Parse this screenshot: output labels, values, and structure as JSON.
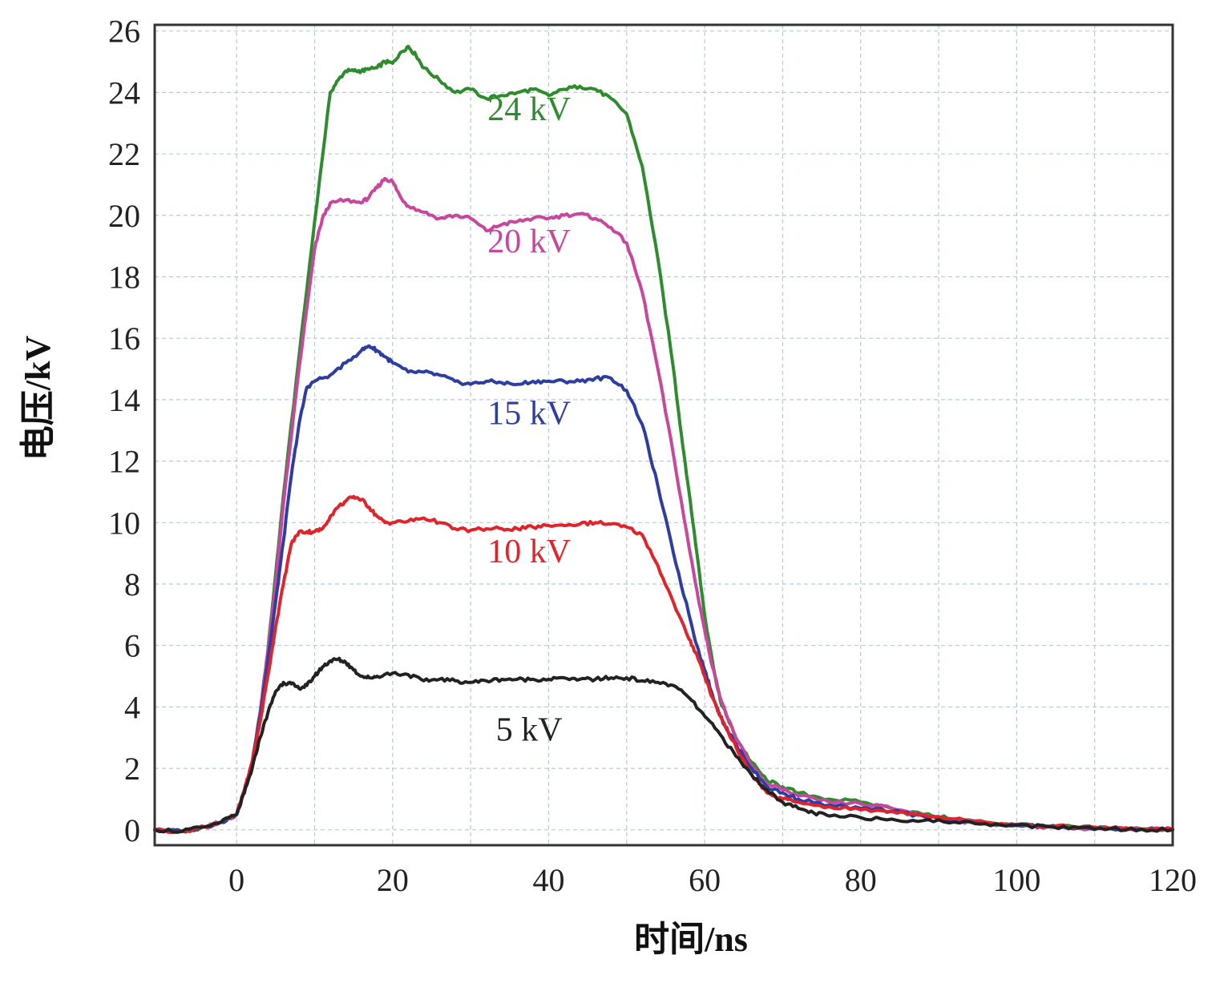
{
  "chart_data": {
    "type": "line",
    "title": "",
    "xlabel": "时间/ns",
    "ylabel": "电压/kV",
    "xlim": [
      -10.5,
      120
    ],
    "ylim": [
      -0.5,
      26.2
    ],
    "x_ticks": [
      0,
      20,
      40,
      60,
      80,
      100,
      120
    ],
    "x_tick_labels": [
      "0",
      "20",
      "40",
      "60",
      "80",
      "100",
      "120"
    ],
    "y_ticks": [
      0,
      2,
      4,
      6,
      8,
      10,
      12,
      14,
      16,
      18,
      20,
      22,
      24,
      26
    ],
    "y_tick_labels": [
      "0",
      "2",
      "4",
      "6",
      "8",
      "10",
      "12",
      "14",
      "16",
      "18",
      "20",
      "22",
      "24",
      "26"
    ],
    "grid": true,
    "series": [
      {
        "name": "24 kV",
        "color": "#2e8b2e",
        "label": {
          "text": "24 kV",
          "x": 37.5,
          "y": 23.1
        },
        "x": [
          -10.5,
          -7,
          -4,
          -2,
          0,
          1,
          2,
          3,
          4,
          5,
          6,
          8,
          10,
          12,
          13,
          14,
          15,
          16,
          17,
          18,
          19,
          20,
          21,
          22,
          23,
          24,
          26,
          28,
          30,
          32,
          34,
          36,
          38,
          40,
          42,
          44,
          46,
          48,
          50,
          52,
          54,
          56,
          57,
          58,
          59,
          60,
          61,
          62,
          63,
          64,
          66,
          68,
          70,
          72,
          76,
          80,
          84,
          88,
          92,
          96,
          100,
          104,
          108,
          112,
          116,
          120
        ],
        "y": [
          0.0,
          -0.05,
          0.1,
          0.25,
          0.5,
          1.3,
          2.2,
          3.8,
          5.8,
          8.3,
          10.9,
          15.4,
          19.8,
          24.0,
          24.4,
          24.7,
          24.7,
          24.7,
          24.75,
          24.8,
          25.0,
          24.95,
          25.3,
          25.5,
          25.2,
          24.8,
          24.4,
          24.0,
          24.1,
          23.8,
          23.9,
          24.0,
          24.1,
          23.9,
          24.1,
          24.2,
          24.1,
          23.8,
          23.3,
          21.6,
          18.6,
          15.0,
          12.9,
          11.0,
          9.0,
          7.0,
          5.5,
          4.2,
          3.6,
          3.0,
          2.2,
          1.6,
          1.4,
          1.2,
          1.0,
          0.9,
          0.7,
          0.5,
          0.35,
          0.25,
          0.18,
          0.12,
          0.08,
          0.05,
          0.03,
          0.02
        ]
      },
      {
        "name": "20 kV",
        "color": "#c8469b",
        "label": {
          "text": "20 kV",
          "x": 37.5,
          "y": 18.8
        },
        "x": [
          -10.5,
          -7,
          -4,
          -2,
          0,
          1,
          2,
          3,
          4,
          5,
          6,
          8,
          10,
          11,
          12,
          14,
          16,
          17,
          18,
          19,
          20,
          21,
          22,
          24,
          26,
          28,
          30,
          32,
          34,
          36,
          38,
          40,
          42,
          44,
          46,
          48,
          50,
          52,
          54,
          56,
          58,
          59,
          60,
          61,
          62,
          63,
          64,
          66,
          68,
          70,
          72,
          76,
          80,
          84,
          88,
          92,
          96,
          100,
          104,
          108,
          112,
          116,
          120
        ],
        "y": [
          0.0,
          -0.05,
          0.1,
          0.25,
          0.5,
          1.3,
          2.2,
          3.8,
          5.8,
          8.0,
          10.6,
          15.0,
          18.9,
          19.9,
          20.4,
          20.5,
          20.4,
          20.6,
          20.9,
          21.2,
          21.1,
          20.6,
          20.3,
          20.1,
          19.9,
          20.0,
          19.9,
          19.5,
          19.7,
          19.8,
          19.9,
          19.9,
          20.0,
          20.05,
          19.9,
          19.6,
          19.1,
          17.5,
          15.0,
          12.2,
          9.2,
          7.8,
          6.5,
          5.3,
          4.3,
          3.6,
          3.0,
          2.1,
          1.5,
          1.3,
          1.1,
          0.9,
          0.85,
          0.7,
          0.5,
          0.3,
          0.22,
          0.15,
          0.1,
          0.06,
          0.04,
          0.02,
          0.0
        ]
      },
      {
        "name": "15 kV",
        "color": "#2d3ea0",
        "label": {
          "text": "15 kV",
          "x": 37.5,
          "y": 13.2
        },
        "x": [
          -10.5,
          -7,
          -4,
          -2,
          0,
          1,
          2,
          3,
          4,
          5,
          6,
          7,
          8,
          9,
          10,
          12,
          14,
          16,
          17,
          18,
          19,
          20,
          22,
          24,
          26,
          28,
          30,
          32,
          34,
          36,
          38,
          40,
          42,
          44,
          46,
          48,
          50,
          52,
          54,
          56,
          58,
          59,
          60,
          61,
          62,
          63,
          64,
          66,
          68,
          70,
          72,
          76,
          80,
          84,
          88,
          92,
          96,
          100,
          104,
          108,
          112,
          116,
          120
        ],
        "y": [
          0.0,
          -0.05,
          0.1,
          0.25,
          0.5,
          1.3,
          2.2,
          3.7,
          5.5,
          7.4,
          9.4,
          11.5,
          13.2,
          14.4,
          14.6,
          14.8,
          15.2,
          15.6,
          15.75,
          15.6,
          15.4,
          15.2,
          14.9,
          14.9,
          14.8,
          14.6,
          14.5,
          14.6,
          14.55,
          14.5,
          14.6,
          14.6,
          14.6,
          14.6,
          14.7,
          14.7,
          14.3,
          13.2,
          11.2,
          9.0,
          7.0,
          6.0,
          5.2,
          4.4,
          3.7,
          3.2,
          2.8,
          2.0,
          1.4,
          1.2,
          1.0,
          0.8,
          0.7,
          0.6,
          0.45,
          0.3,
          0.2,
          0.15,
          0.1,
          0.06,
          0.04,
          0.02,
          0.0
        ]
      },
      {
        "name": "10 kV",
        "color": "#e0242b",
        "label": {
          "text": "10 kV",
          "x": 37.5,
          "y": 8.7
        },
        "x": [
          -10.5,
          -7,
          -4,
          -2,
          0,
          1,
          2,
          3,
          4,
          5,
          6,
          7,
          8,
          9,
          10,
          11,
          12,
          13,
          14,
          15,
          16,
          17,
          18,
          19,
          20,
          22,
          24,
          26,
          28,
          30,
          32,
          34,
          36,
          38,
          40,
          42,
          44,
          46,
          48,
          50,
          52,
          54,
          56,
          58,
          59,
          60,
          61,
          62,
          63,
          64,
          66,
          68,
          70,
          72,
          76,
          80,
          84,
          88,
          92,
          96,
          100,
          104,
          108,
          112,
          116,
          120
        ],
        "y": [
          0.0,
          -0.05,
          0.1,
          0.25,
          0.5,
          1.3,
          2.2,
          3.5,
          5.0,
          6.6,
          8.0,
          9.3,
          9.7,
          9.7,
          9.7,
          9.8,
          10.2,
          10.5,
          10.7,
          10.85,
          10.75,
          10.5,
          10.2,
          10.0,
          10.0,
          10.05,
          10.15,
          10.0,
          9.8,
          9.75,
          9.8,
          9.8,
          9.8,
          9.85,
          9.9,
          9.9,
          9.95,
          10.0,
          9.95,
          9.85,
          9.6,
          8.6,
          7.4,
          6.2,
          5.7,
          5.0,
          4.3,
          3.7,
          3.2,
          2.7,
          1.8,
          1.2,
          1.0,
          0.9,
          0.75,
          0.65,
          0.6,
          0.5,
          0.35,
          0.25,
          0.18,
          0.12,
          0.08,
          0.05,
          0.03,
          0.02
        ]
      },
      {
        "name": "5 kV",
        "color": "#222222",
        "label": {
          "text": "5 kV",
          "x": 37.5,
          "y": 2.9
        },
        "x": [
          -10.5,
          -7,
          -4,
          -2,
          0,
          1,
          2,
          3,
          4,
          5,
          6,
          7,
          8,
          9,
          10,
          11,
          12,
          13,
          14,
          15,
          16,
          17,
          18,
          20,
          22,
          24,
          26,
          28,
          30,
          32,
          34,
          36,
          38,
          40,
          42,
          44,
          46,
          48,
          50,
          52,
          54,
          56,
          58,
          60,
          62,
          64,
          66,
          68,
          70,
          72,
          74,
          76,
          80,
          84,
          88,
          92,
          96,
          100,
          104,
          108,
          112,
          116,
          120
        ],
        "y": [
          0.0,
          -0.05,
          0.1,
          0.25,
          0.5,
          1.2,
          2.0,
          3.0,
          3.8,
          4.5,
          4.8,
          4.75,
          4.6,
          4.7,
          5.0,
          5.3,
          5.5,
          5.55,
          5.45,
          5.2,
          5.0,
          4.95,
          5.0,
          5.1,
          5.05,
          4.85,
          4.9,
          4.85,
          4.8,
          4.85,
          4.9,
          4.9,
          4.9,
          4.9,
          4.95,
          4.9,
          4.9,
          4.95,
          4.95,
          4.85,
          4.8,
          4.7,
          4.3,
          3.7,
          3.1,
          2.4,
          1.8,
          1.3,
          0.9,
          0.7,
          0.55,
          0.45,
          0.4,
          0.35,
          0.3,
          0.25,
          0.2,
          0.15,
          0.1,
          0.07,
          0.04,
          0.02,
          0.0
        ]
      }
    ]
  }
}
